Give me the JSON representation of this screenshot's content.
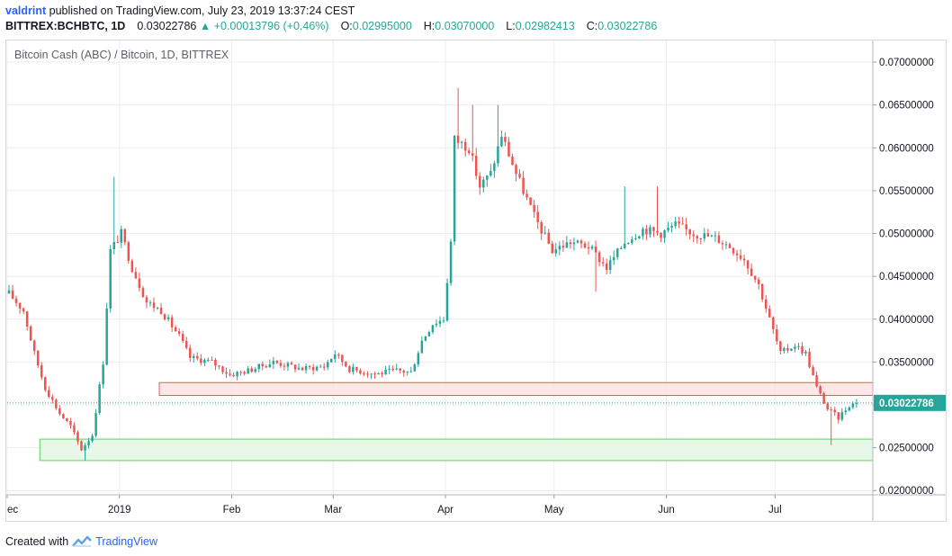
{
  "header": {
    "author": "valdrint",
    "published_text": "published on TradingView.com, July 23, 2019 13:37:24 CEST",
    "symbol": "BITTREX:BCHBTC, 1D",
    "last": "0.03022786",
    "change": "+0.00013796 (+0.46%)",
    "open_label": "O:",
    "open": "0.02995000",
    "high_label": "H:",
    "high": "0.03070000",
    "low_label": "L:",
    "low": "0.02982413",
    "close_label": "C:",
    "close": "0.03022786"
  },
  "footer": {
    "created_text": "Created with",
    "brand": "TradingView"
  },
  "colors": {
    "up": "#26a69a",
    "down": "#ef5350",
    "grid": "#e9ecf2",
    "axis_text": "#131722",
    "price_line": "#26a69a",
    "resistance_fill": "#fde3e3",
    "resistance_stroke": "#ef5350",
    "support_fill": "#e4f7e4",
    "support_stroke": "#5fd35f"
  },
  "chart_data": {
    "type": "candlestick",
    "title": "Bitcoin Cash (ABC) / Bitcoin, 1D, BITTREX",
    "ylim": [
      0.0195,
      0.072
    ],
    "y_ticks": [
      0.02,
      0.025,
      0.03,
      0.035,
      0.04,
      0.045,
      0.05,
      0.055,
      0.06,
      0.065,
      0.07
    ],
    "y_tick_labels": [
      "0.02000000",
      "0.02500000",
      "0.03000000",
      "0.03500000",
      "0.04000000",
      "0.04500000",
      "0.05000000",
      "0.05500000",
      "0.06000000",
      "0.06500000",
      "0.07000000"
    ],
    "x_start": "2018-12-01",
    "x_end": "2019-07-28",
    "x_ticks": [
      {
        "date": "2018-12-01",
        "label": "ec"
      },
      {
        "date": "2019-01-01",
        "label": "2019"
      },
      {
        "date": "2019-02-01",
        "label": "Feb"
      },
      {
        "date": "2019-03-01",
        "label": "Mar"
      },
      {
        "date": "2019-04-01",
        "label": "Apr"
      },
      {
        "date": "2019-05-01",
        "label": "May"
      },
      {
        "date": "2019-06-01",
        "label": "Jun"
      },
      {
        "date": "2019-07-01",
        "label": "Jul"
      }
    ],
    "last_price": 0.03022786,
    "last_price_label": "0.03022786",
    "zones": [
      {
        "name": "resistance",
        "date_start": "2019-01-12",
        "date_end": "2019-07-28",
        "y_low": 0.0311,
        "y_high": 0.0326
      },
      {
        "name": "support",
        "date_start": "2018-12-10",
        "date_end": "2019-07-28",
        "y_low": 0.0235,
        "y_high": 0.026
      }
    ],
    "anchors": [
      [
        "2018-12-01",
        0.043
      ],
      [
        "2018-12-05",
        0.041
      ],
      [
        "2018-12-08",
        0.036
      ],
      [
        "2018-12-11",
        0.032
      ],
      [
        "2018-12-15",
        0.029
      ],
      [
        "2018-12-18",
        0.0275
      ],
      [
        "2018-12-21",
        0.0248
      ],
      [
        "2018-12-24",
        0.0265
      ],
      [
        "2018-12-27",
        0.035
      ],
      [
        "2018-12-29",
        0.048
      ],
      [
        "2019-01-01",
        0.05
      ],
      [
        "2019-01-04",
        0.046
      ],
      [
        "2019-01-08",
        0.042
      ],
      [
        "2019-01-12",
        0.041
      ],
      [
        "2019-01-17",
        0.038
      ],
      [
        "2019-01-20",
        0.0355
      ],
      [
        "2019-01-26",
        0.035
      ],
      [
        "2019-01-31",
        0.0335
      ],
      [
        "2019-02-05",
        0.034
      ],
      [
        "2019-02-12",
        0.035
      ],
      [
        "2019-02-20",
        0.0342
      ],
      [
        "2019-02-26",
        0.0345
      ],
      [
        "2019-03-01",
        0.036
      ],
      [
        "2019-03-05",
        0.0342
      ],
      [
        "2019-03-12",
        0.0336
      ],
      [
        "2019-03-18",
        0.034
      ],
      [
        "2019-03-22",
        0.0338
      ],
      [
        "2019-03-25",
        0.0375
      ],
      [
        "2019-03-28",
        0.0395
      ],
      [
        "2019-03-31",
        0.04
      ],
      [
        "2019-04-02",
        0.049
      ],
      [
        "2019-04-03",
        0.061
      ],
      [
        "2019-04-07",
        0.06
      ],
      [
        "2019-04-10",
        0.0555
      ],
      [
        "2019-04-13",
        0.057
      ],
      [
        "2019-04-16",
        0.0615
      ],
      [
        "2019-04-20",
        0.057
      ],
      [
        "2019-04-25",
        0.052
      ],
      [
        "2019-04-30",
        0.048
      ],
      [
        "2019-05-05",
        0.049
      ],
      [
        "2019-05-10",
        0.0485
      ],
      [
        "2019-05-15",
        0.046
      ],
      [
        "2019-05-20",
        0.049
      ],
      [
        "2019-05-25",
        0.0505
      ],
      [
        "2019-05-30",
        0.05
      ],
      [
        "2019-06-03",
        0.051
      ],
      [
        "2019-06-08",
        0.05
      ],
      [
        "2019-06-14",
        0.0495
      ],
      [
        "2019-06-18",
        0.0485
      ],
      [
        "2019-06-22",
        0.047
      ],
      [
        "2019-06-26",
        0.044
      ],
      [
        "2019-06-29",
        0.04
      ],
      [
        "2019-07-02",
        0.036
      ],
      [
        "2019-07-06",
        0.037
      ],
      [
        "2019-07-09",
        0.036
      ],
      [
        "2019-07-12",
        0.032
      ],
      [
        "2019-07-15",
        0.0295
      ],
      [
        "2019-07-18",
        0.0285
      ],
      [
        "2019-07-21",
        0.03
      ],
      [
        "2019-07-23",
        0.0302
      ]
    ],
    "spikes": [
      {
        "date": "2018-12-30",
        "high": 0.0566
      },
      {
        "date": "2019-04-04",
        "high": 0.067
      },
      {
        "date": "2019-04-08",
        "high": 0.065
      },
      {
        "date": "2019-04-15",
        "high": 0.065
      },
      {
        "date": "2019-05-29",
        "high": 0.0555
      },
      {
        "date": "2019-05-20",
        "high": 0.0555
      },
      {
        "date": "2018-12-22",
        "low": 0.0235
      },
      {
        "date": "2019-07-16",
        "low": 0.0253
      },
      {
        "date": "2019-05-12",
        "low": 0.0432
      }
    ]
  }
}
